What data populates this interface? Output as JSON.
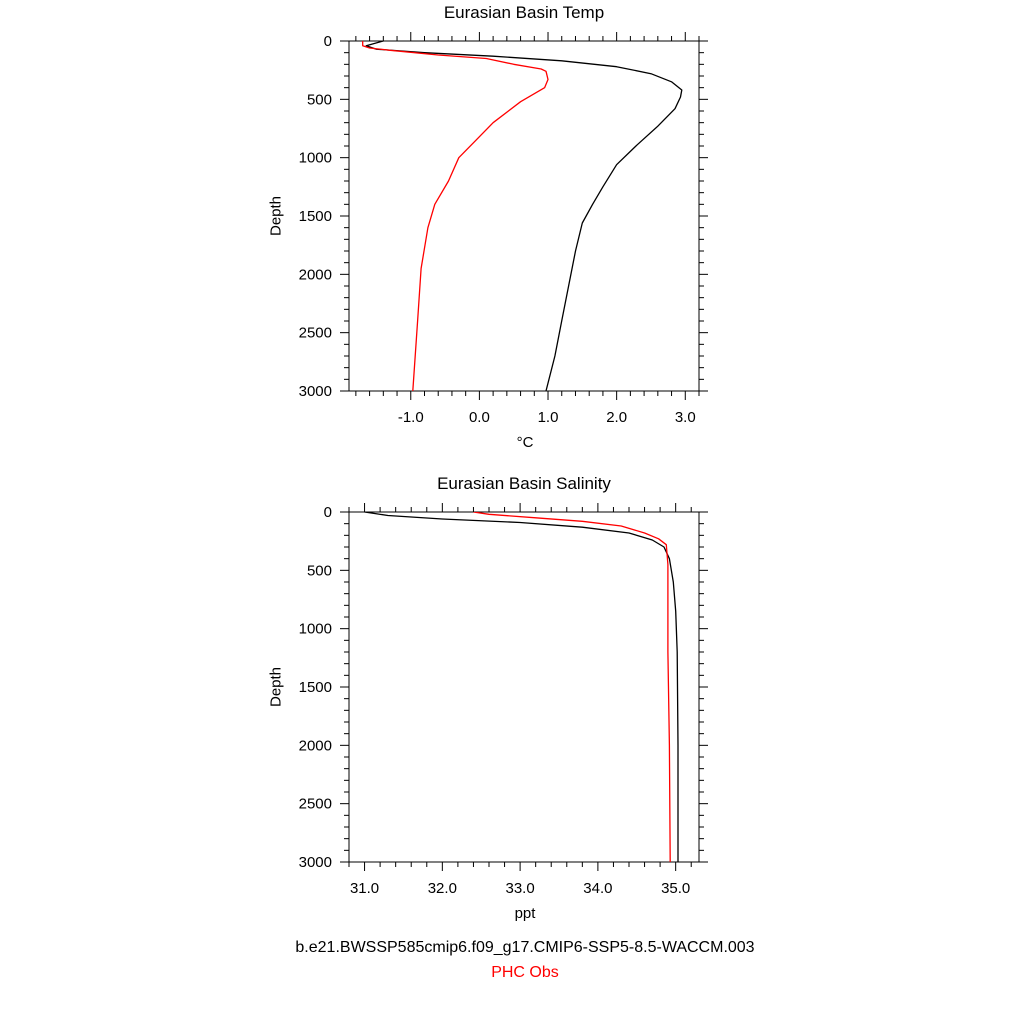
{
  "chart_data": [
    {
      "type": "line",
      "title": "Eurasian Basin Temp",
      "xlabel": "°C",
      "ylabel": "Depth",
      "xlim": [
        -1.9,
        3.2
      ],
      "ylim": [
        3000,
        0
      ],
      "y_inverted": true,
      "xticks": [
        -1.0,
        0.0,
        1.0,
        2.0,
        3.0
      ],
      "xtick_labels": [
        "-1.0",
        "0.0",
        "1.0",
        "2.0",
        "3.0"
      ],
      "yticks": [
        0,
        500,
        1000,
        1500,
        2000,
        2500,
        3000
      ],
      "ytick_labels": [
        "0",
        "500",
        "1000",
        "1500",
        "2000",
        "2500",
        "3000"
      ],
      "grid": false,
      "series": [
        {
          "color": "#000000",
          "points": [
            [
              -1.4,
              0
            ],
            [
              -1.65,
              40
            ],
            [
              -1.5,
              70
            ],
            [
              -0.8,
              100
            ],
            [
              0.2,
              130
            ],
            [
              1.2,
              170
            ],
            [
              2.0,
              220
            ],
            [
              2.5,
              280
            ],
            [
              2.8,
              350
            ],
            [
              2.95,
              420
            ],
            [
              2.93,
              480
            ],
            [
              2.85,
              580
            ],
            [
              2.6,
              730
            ],
            [
              2.3,
              890
            ],
            [
              2.0,
              1060
            ],
            [
              1.8,
              1250
            ],
            [
              1.65,
              1400
            ],
            [
              1.5,
              1560
            ],
            [
              1.4,
              1800
            ],
            [
              1.3,
              2100
            ],
            [
              1.2,
              2400
            ],
            [
              1.1,
              2700
            ],
            [
              0.97,
              3000
            ]
          ]
        },
        {
          "color": "#ff0000",
          "points": [
            [
              -1.7,
              0
            ],
            [
              -1.7,
              40
            ],
            [
              -1.6,
              60
            ],
            [
              -1.3,
              80
            ],
            [
              -0.6,
              120
            ],
            [
              0.1,
              150
            ],
            [
              0.5,
              200
            ],
            [
              0.9,
              240
            ],
            [
              0.97,
              260
            ],
            [
              0.98,
              280
            ],
            [
              1.0,
              330
            ],
            [
              0.95,
              400
            ],
            [
              0.6,
              520
            ],
            [
              0.2,
              700
            ],
            [
              -0.05,
              850
            ],
            [
              -0.3,
              1000
            ],
            [
              -0.45,
              1200
            ],
            [
              -0.65,
              1400
            ],
            [
              -0.75,
              1600
            ],
            [
              -0.85,
              1950
            ],
            [
              -0.9,
              2400
            ],
            [
              -0.97,
              3000
            ]
          ]
        }
      ]
    },
    {
      "type": "line",
      "title": "Eurasian Basin Salinity",
      "xlabel": "ppt",
      "ylabel": "Depth",
      "xlim": [
        30.8,
        35.3
      ],
      "ylim": [
        3000,
        0
      ],
      "y_inverted": true,
      "xticks": [
        31.0,
        32.0,
        33.0,
        34.0,
        35.0
      ],
      "xtick_labels": [
        "31.0",
        "32.0",
        "33.0",
        "34.0",
        "35.0"
      ],
      "yticks": [
        0,
        500,
        1000,
        1500,
        2000,
        2500,
        3000
      ],
      "ytick_labels": [
        "0",
        "500",
        "1000",
        "1500",
        "2000",
        "2500",
        "3000"
      ],
      "grid": false,
      "series": [
        {
          "color": "#000000",
          "points": [
            [
              31.0,
              0
            ],
            [
              31.3,
              30
            ],
            [
              32.0,
              60
            ],
            [
              33.0,
              90
            ],
            [
              33.8,
              130
            ],
            [
              34.4,
              180
            ],
            [
              34.7,
              240
            ],
            [
              34.85,
              300
            ],
            [
              34.92,
              400
            ],
            [
              34.97,
              600
            ],
            [
              35.0,
              850
            ],
            [
              35.02,
              1200
            ],
            [
              35.03,
              2000
            ],
            [
              35.03,
              3000
            ]
          ]
        },
        {
          "color": "#ff0000",
          "points": [
            [
              32.4,
              0
            ],
            [
              32.6,
              20
            ],
            [
              33.2,
              50
            ],
            [
              33.8,
              80
            ],
            [
              34.3,
              120
            ],
            [
              34.6,
              180
            ],
            [
              34.78,
              230
            ],
            [
              34.88,
              280
            ],
            [
              34.9,
              450
            ],
            [
              34.9,
              700
            ],
            [
              34.9,
              1200
            ],
            [
              34.92,
              2000
            ],
            [
              34.93,
              3000
            ]
          ]
        }
      ]
    }
  ],
  "footer": {
    "case_name": "b.e21.BWSSP585cmip6.f09_g17.CMIP6-SSP5-8.5-WACCM.003",
    "obs_name": "PHC Obs",
    "case_color": "#000000",
    "obs_color": "#ff0000"
  }
}
